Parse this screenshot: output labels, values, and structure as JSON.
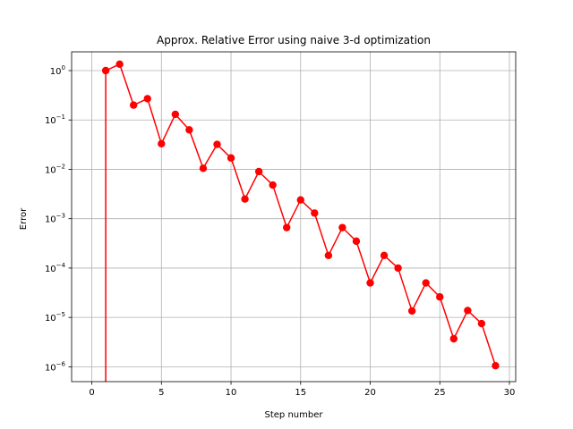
{
  "chart_data": {
    "type": "line",
    "title": "Approx. Relative Error using naive 3-d optimization",
    "xlabel": "Step number",
    "ylabel": "Error",
    "yscale": "log",
    "xlim": [
      -1.45,
      30.45
    ],
    "ylim": [
      5e-07,
      2.4
    ],
    "grid": true,
    "x_ticks": [
      0,
      5,
      10,
      15,
      20,
      25,
      30
    ],
    "x_tick_labels": [
      "0",
      "5",
      "10",
      "15",
      "20",
      "25",
      "30"
    ],
    "y_ticks": [
      1e-06,
      1e-05,
      0.0001,
      0.001,
      0.01,
      0.1,
      1
    ],
    "y_tick_labels": [
      {
        "base": "10",
        "exp": "−6"
      },
      {
        "base": "10",
        "exp": "−5"
      },
      {
        "base": "10",
        "exp": "−4"
      },
      {
        "base": "10",
        "exp": "−3"
      },
      {
        "base": "10",
        "exp": "−2"
      },
      {
        "base": "10",
        "exp": "−1"
      },
      {
        "base": "10",
        "exp": "0"
      }
    ],
    "series_color": "#ff0000",
    "grid_color": "#b0b0b0",
    "series": [
      {
        "x": [
          1,
          2,
          3,
          4,
          5,
          6,
          7,
          8,
          9,
          10,
          11,
          12,
          13,
          14,
          15,
          16,
          17,
          18,
          19,
          20,
          21,
          22,
          23,
          24,
          25,
          26,
          27,
          28,
          29
        ],
        "values": [
          1.0,
          1.35,
          0.2,
          0.27,
          0.033,
          0.13,
          0.063,
          0.0105,
          0.032,
          0.017,
          0.0025,
          0.009,
          0.0048,
          0.00066,
          0.0024,
          0.0013,
          0.00018,
          0.00066,
          0.00035,
          5e-05,
          0.00018,
          0.0001,
          1.35e-05,
          5e-05,
          2.6e-05,
          3.7e-06,
          1.38e-05,
          7.5e-06,
          1.05e-06
        ]
      }
    ],
    "drop_line": {
      "x": 1,
      "from": 1.0,
      "to": 0
    }
  }
}
